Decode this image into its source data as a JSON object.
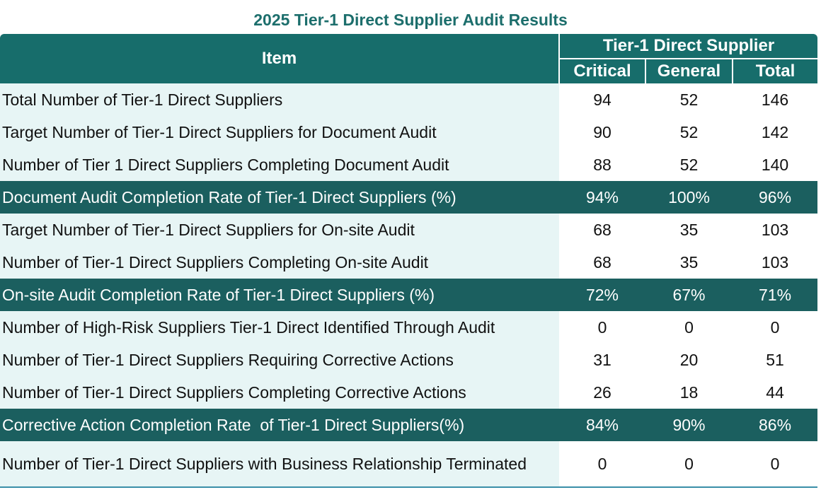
{
  "header": {
    "title": "2025 Tier-1 Direct Supplier Audit Results"
  },
  "table": {
    "columns": {
      "item": "Item",
      "group": "Tier-1 Direct Supplier",
      "sub": [
        "Critical",
        "General",
        "Total"
      ]
    },
    "rows": [
      [
        "Total Number of Tier-1 Direct Suppliers",
        "94",
        "52",
        "146"
      ],
      [
        "Target Number of Tier-1 Direct Suppliers for Document Audit",
        "90",
        "52",
        "142"
      ],
      [
        "Number of Tier 1 Direct Suppliers Completing Document Audit",
        "88",
        "52",
        "140"
      ],
      [
        "Document Audit Completion Rate of Tier-1 Direct Suppliers (%)",
        "94%",
        "100%",
        "96%"
      ],
      [
        "Target Number of Tier-1 Direct Suppliers for On-site Audit",
        "68",
        "35",
        "103"
      ],
      [
        "Number of Tier-1 Direct Suppliers Completing On-site Audit",
        "68",
        "35",
        "103"
      ],
      [
        "On-site Audit Completion Rate of Tier-1 Direct Suppliers (%)",
        "72%",
        "67%",
        "71%"
      ],
      [
        "Number of High-Risk Suppliers Tier-1 Direct Identified Through Audit",
        "0",
        "0",
        "0"
      ],
      [
        "Number of Tier-1 Direct Suppliers Requiring Corrective Actions",
        "31",
        "20",
        "51"
      ],
      [
        "Number of Tier-1 Direct Suppliers Completing Corrective Actions",
        "26",
        "18",
        "44"
      ],
      [
        "Corrective Action Completion Rate  of Tier-1 Direct Suppliers(%)",
        "84%",
        "90%",
        "86%"
      ],
      [
        "Number of Tier-1 Direct Suppliers with Business Relationship Terminated",
        "0",
        "0",
        "0"
      ]
    ]
  }
}
